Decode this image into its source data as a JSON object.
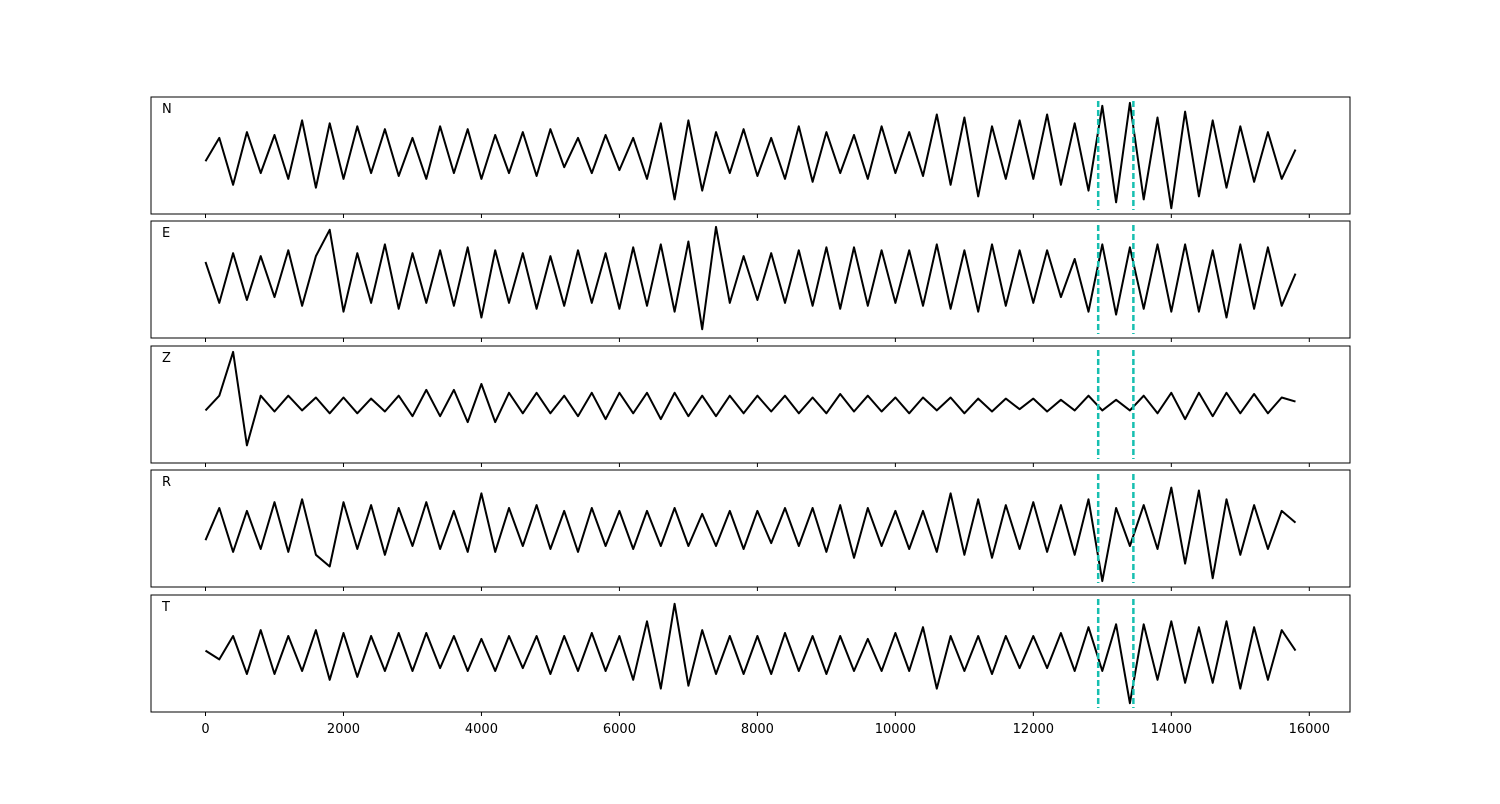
{
  "chart_data": {
    "type": "line",
    "layout": "panels",
    "x": [
      0,
      200,
      400,
      600,
      800,
      1000,
      1200,
      1400,
      1600,
      1800,
      2000,
      2200,
      2400,
      2600,
      2800,
      3000,
      3200,
      3400,
      3600,
      3800,
      4000,
      4200,
      4400,
      4600,
      4800,
      5000,
      5200,
      5400,
      5600,
      5800,
      6000,
      6200,
      6400,
      6600,
      6800,
      7000,
      7200,
      7400,
      7600,
      7800,
      8000,
      8200,
      8400,
      8600,
      8800,
      9000,
      9200,
      9400,
      9600,
      9800,
      10000,
      10200,
      10400,
      10600,
      10800,
      11000,
      11200,
      11400,
      11600,
      11800,
      12000,
      12200,
      12400,
      12600,
      12800,
      13000,
      13200,
      13400,
      13600,
      13800,
      14000,
      14200,
      14400,
      14600,
      14800,
      15000,
      15200,
      15400,
      15600,
      15800
    ],
    "xlim": [
      -790,
      16590
    ],
    "xticks": [
      0,
      2000,
      4000,
      6000,
      8000,
      10000,
      12000,
      14000,
      16000
    ],
    "ylim": [
      -1,
      1
    ],
    "line_color": "#000000",
    "markers": [
      12940,
      13450
    ],
    "marker_color": "#17bfb0",
    "series": [
      {
        "name": "N",
        "values": [
          -0.1,
          0.3,
          -0.5,
          0.4,
          -0.3,
          0.35,
          -0.4,
          0.6,
          -0.55,
          0.55,
          -0.4,
          0.5,
          -0.3,
          0.45,
          -0.35,
          0.3,
          -0.4,
          0.5,
          -0.3,
          0.45,
          -0.4,
          0.35,
          -0.3,
          0.4,
          -0.35,
          0.45,
          -0.2,
          0.3,
          -0.3,
          0.35,
          -0.25,
          0.3,
          -0.4,
          0.55,
          -0.75,
          0.6,
          -0.6,
          0.4,
          -0.3,
          0.45,
          -0.35,
          0.3,
          -0.4,
          0.5,
          -0.45,
          0.4,
          -0.3,
          0.35,
          -0.4,
          0.5,
          -0.3,
          0.4,
          -0.35,
          0.7,
          -0.5,
          0.65,
          -0.7,
          0.5,
          -0.4,
          0.6,
          -0.4,
          0.7,
          -0.5,
          0.55,
          -0.6,
          0.85,
          -0.8,
          0.9,
          -0.75,
          0.65,
          -0.9,
          0.75,
          -0.7,
          0.6,
          -0.55,
          0.5,
          -0.45,
          0.4,
          -0.4,
          0.1
        ]
      },
      {
        "name": "E",
        "values": [
          0.3,
          -0.4,
          0.45,
          -0.35,
          0.4,
          -0.3,
          0.5,
          -0.45,
          0.4,
          0.85,
          -0.55,
          0.45,
          -0.4,
          0.6,
          -0.5,
          0.45,
          -0.4,
          0.5,
          -0.45,
          0.55,
          -0.65,
          0.5,
          -0.4,
          0.45,
          -0.5,
          0.4,
          -0.45,
          0.5,
          -0.4,
          0.45,
          -0.5,
          0.55,
          -0.45,
          0.6,
          -0.55,
          0.65,
          -0.85,
          0.9,
          -0.4,
          0.4,
          -0.35,
          0.45,
          -0.4,
          0.5,
          -0.45,
          0.55,
          -0.5,
          0.55,
          -0.45,
          0.5,
          -0.4,
          0.5,
          -0.45,
          0.6,
          -0.5,
          0.5,
          -0.55,
          0.6,
          -0.45,
          0.5,
          -0.4,
          0.5,
          -0.3,
          0.35,
          -0.55,
          0.6,
          -0.6,
          0.55,
          -0.5,
          0.6,
          -0.55,
          0.6,
          -0.55,
          0.5,
          -0.65,
          0.6,
          -0.5,
          0.55,
          -0.45,
          0.1
        ]
      },
      {
        "name": "Z",
        "values": [
          -0.1,
          0.15,
          0.9,
          -0.7,
          0.15,
          -0.12,
          0.15,
          -0.1,
          0.12,
          -0.15,
          0.12,
          -0.15,
          0.1,
          -0.12,
          0.15,
          -0.2,
          0.25,
          -0.2,
          0.25,
          -0.3,
          0.35,
          -0.3,
          0.2,
          -0.15,
          0.2,
          -0.15,
          0.15,
          -0.2,
          0.2,
          -0.25,
          0.2,
          -0.15,
          0.2,
          -0.25,
          0.2,
          -0.2,
          0.15,
          -0.2,
          0.15,
          -0.15,
          0.15,
          -0.12,
          0.15,
          -0.15,
          0.12,
          -0.15,
          0.18,
          -0.12,
          0.15,
          -0.12,
          0.12,
          -0.15,
          0.12,
          -0.1,
          0.12,
          -0.15,
          0.1,
          -0.12,
          0.1,
          -0.08,
          0.1,
          -0.12,
          0.08,
          -0.1,
          0.15,
          -0.1,
          0.08,
          -0.1,
          0.15,
          -0.15,
          0.2,
          -0.25,
          0.2,
          -0.2,
          0.2,
          -0.15,
          0.18,
          -0.15,
          0.12,
          0.05
        ]
      },
      {
        "name": "R",
        "values": [
          -0.2,
          0.35,
          -0.4,
          0.3,
          -0.35,
          0.45,
          -0.4,
          0.5,
          -0.45,
          -0.65,
          0.45,
          -0.35,
          0.4,
          -0.45,
          0.35,
          -0.3,
          0.45,
          -0.35,
          0.3,
          -0.4,
          0.6,
          -0.4,
          0.35,
          -0.3,
          0.4,
          -0.35,
          0.3,
          -0.4,
          0.35,
          -0.3,
          0.3,
          -0.35,
          0.3,
          -0.3,
          0.35,
          -0.3,
          0.25,
          -0.3,
          0.3,
          -0.35,
          0.3,
          -0.25,
          0.35,
          -0.3,
          0.35,
          -0.4,
          0.4,
          -0.5,
          0.35,
          -0.3,
          0.3,
          -0.35,
          0.3,
          -0.4,
          0.6,
          -0.45,
          0.5,
          -0.5,
          0.4,
          -0.35,
          0.45,
          -0.4,
          0.4,
          -0.45,
          0.5,
          -0.9,
          0.35,
          -0.3,
          0.4,
          -0.35,
          0.7,
          -0.6,
          0.65,
          -0.85,
          0.5,
          -0.45,
          0.4,
          -0.35,
          0.3,
          0.1
        ]
      },
      {
        "name": "T",
        "values": [
          0.05,
          -0.1,
          0.3,
          -0.35,
          0.4,
          -0.35,
          0.3,
          -0.3,
          0.4,
          -0.45,
          0.35,
          -0.4,
          0.3,
          -0.3,
          0.35,
          -0.3,
          0.35,
          -0.25,
          0.3,
          -0.3,
          0.25,
          -0.3,
          0.3,
          -0.25,
          0.3,
          -0.35,
          0.3,
          -0.3,
          0.35,
          -0.3,
          0.3,
          -0.45,
          0.55,
          -0.6,
          0.85,
          -0.55,
          0.4,
          -0.35,
          0.3,
          -0.35,
          0.3,
          -0.35,
          0.35,
          -0.3,
          0.3,
          -0.35,
          0.3,
          -0.3,
          0.25,
          -0.3,
          0.35,
          -0.3,
          0.45,
          -0.6,
          0.3,
          -0.3,
          0.3,
          -0.35,
          0.3,
          -0.25,
          0.3,
          -0.25,
          0.35,
          -0.3,
          0.45,
          -0.3,
          0.5,
          -0.85,
          0.5,
          -0.45,
          0.55,
          -0.5,
          0.45,
          -0.5,
          0.55,
          -0.6,
          0.45,
          -0.45,
          0.4,
          0.05
        ]
      }
    ]
  }
}
